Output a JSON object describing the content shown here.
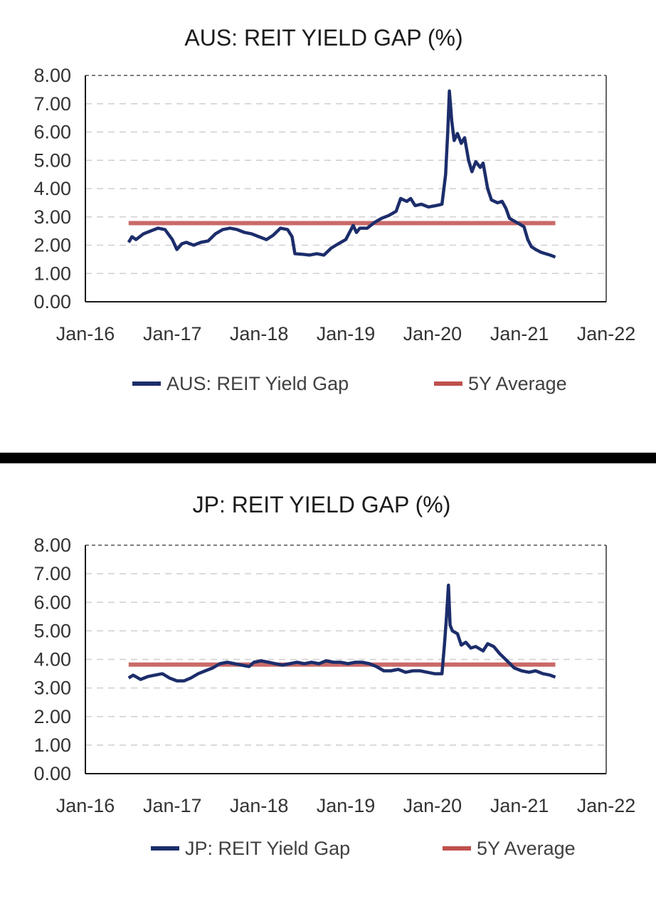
{
  "chart_data": [
    {
      "type": "line",
      "title": "AUS: REIT YIELD GAP (%)",
      "xlabel": "",
      "ylabel": "",
      "x_ticks": [
        "Jan-16",
        "Jan-17",
        "Jan-18",
        "Jan-19",
        "Jan-20",
        "Jan-21",
        "Jan-22"
      ],
      "y_ticks": [
        "0.00",
        "1.00",
        "2.00",
        "3.00",
        "4.00",
        "5.00",
        "6.00",
        "7.00",
        "8.00"
      ],
      "xlim": [
        "2016-01-01",
        "2022-01-01"
      ],
      "ylim": [
        0,
        8
      ],
      "grid": "horizontal dashed",
      "legend": "bottom",
      "series": [
        {
          "name": "AUS: REIT Yield Gap",
          "color": "#1c2d6b",
          "points": [
            [
              "2016-07-01",
              2.1
            ],
            [
              "2016-07-15",
              2.3
            ],
            [
              "2016-08-01",
              2.2
            ],
            [
              "2016-09-01",
              2.4
            ],
            [
              "2016-10-01",
              2.5
            ],
            [
              "2016-11-01",
              2.6
            ],
            [
              "2016-12-01",
              2.55
            ],
            [
              "2017-01-01",
              2.2
            ],
            [
              "2017-01-20",
              1.85
            ],
            [
              "2017-02-10",
              2.05
            ],
            [
              "2017-03-01",
              2.1
            ],
            [
              "2017-04-01",
              2.0
            ],
            [
              "2017-05-01",
              2.1
            ],
            [
              "2017-06-01",
              2.15
            ],
            [
              "2017-07-01",
              2.4
            ],
            [
              "2017-08-01",
              2.55
            ],
            [
              "2017-09-01",
              2.6
            ],
            [
              "2017-10-01",
              2.55
            ],
            [
              "2017-11-01",
              2.45
            ],
            [
              "2017-12-01",
              2.4
            ],
            [
              "2018-01-01",
              2.3
            ],
            [
              "2018-02-01",
              2.2
            ],
            [
              "2018-03-01",
              2.35
            ],
            [
              "2018-04-01",
              2.6
            ],
            [
              "2018-05-01",
              2.55
            ],
            [
              "2018-05-20",
              2.3
            ],
            [
              "2018-06-01",
              1.7
            ],
            [
              "2018-07-01",
              1.68
            ],
            [
              "2018-08-01",
              1.65
            ],
            [
              "2018-09-01",
              1.7
            ],
            [
              "2018-10-01",
              1.65
            ],
            [
              "2018-11-01",
              1.9
            ],
            [
              "2018-12-01",
              2.05
            ],
            [
              "2019-01-01",
              2.2
            ],
            [
              "2019-02-01",
              2.7
            ],
            [
              "2019-02-15",
              2.45
            ],
            [
              "2019-03-01",
              2.6
            ],
            [
              "2019-04-01",
              2.6
            ],
            [
              "2019-05-01",
              2.8
            ],
            [
              "2019-06-01",
              2.95
            ],
            [
              "2019-07-01",
              3.05
            ],
            [
              "2019-08-01",
              3.2
            ],
            [
              "2019-08-20",
              3.65
            ],
            [
              "2019-09-15",
              3.55
            ],
            [
              "2019-10-01",
              3.65
            ],
            [
              "2019-10-20",
              3.4
            ],
            [
              "2019-11-15",
              3.45
            ],
            [
              "2019-12-15",
              3.35
            ],
            [
              "2020-01-15",
              3.4
            ],
            [
              "2020-02-10",
              3.45
            ],
            [
              "2020-02-25",
              4.5
            ],
            [
              "2020-03-05",
              6.0
            ],
            [
              "2020-03-12",
              7.45
            ],
            [
              "2020-03-22",
              6.4
            ],
            [
              "2020-04-01",
              5.7
            ],
            [
              "2020-04-15",
              5.95
            ],
            [
              "2020-05-01",
              5.6
            ],
            [
              "2020-05-15",
              5.8
            ],
            [
              "2020-06-01",
              5.0
            ],
            [
              "2020-06-15",
              4.6
            ],
            [
              "2020-07-01",
              4.95
            ],
            [
              "2020-07-20",
              4.75
            ],
            [
              "2020-08-01",
              4.9
            ],
            [
              "2020-08-20",
              4.0
            ],
            [
              "2020-09-05",
              3.6
            ],
            [
              "2020-10-01",
              3.5
            ],
            [
              "2020-10-20",
              3.55
            ],
            [
              "2020-11-05",
              3.3
            ],
            [
              "2020-11-20",
              2.95
            ],
            [
              "2020-12-10",
              2.85
            ],
            [
              "2021-01-01",
              2.75
            ],
            [
              "2021-01-20",
              2.65
            ],
            [
              "2021-02-05",
              2.2
            ],
            [
              "2021-02-20",
              1.95
            ],
            [
              "2021-03-10",
              1.85
            ],
            [
              "2021-04-01",
              1.75
            ],
            [
              "2021-04-20",
              1.7
            ],
            [
              "2021-05-10",
              1.65
            ],
            [
              "2021-06-01",
              1.58
            ]
          ]
        },
        {
          "name": "5Y Average",
          "color": "#c0504d",
          "points": [
            [
              "2016-07-01",
              2.78
            ],
            [
              "2021-06-01",
              2.78
            ]
          ]
        }
      ]
    },
    {
      "type": "line",
      "title": "JP: REIT YIELD GAP (%)",
      "xlabel": "",
      "ylabel": "",
      "x_ticks": [
        "Jan-16",
        "Jan-17",
        "Jan-18",
        "Jan-19",
        "Jan-20",
        "Jan-21",
        "Jan-22"
      ],
      "y_ticks": [
        "0.00",
        "1.00",
        "2.00",
        "3.00",
        "4.00",
        "5.00",
        "6.00",
        "7.00",
        "8.00"
      ],
      "xlim": [
        "2016-01-01",
        "2022-01-01"
      ],
      "ylim": [
        0,
        8
      ],
      "grid": "horizontal dashed",
      "legend": "bottom",
      "series": [
        {
          "name": "JP: REIT Yield Gap",
          "color": "#1c2d6b",
          "points": [
            [
              "2016-07-01",
              3.35
            ],
            [
              "2016-07-20",
              3.45
            ],
            [
              "2016-08-20",
              3.3
            ],
            [
              "2016-09-20",
              3.4
            ],
            [
              "2016-10-20",
              3.45
            ],
            [
              "2016-11-20",
              3.5
            ],
            [
              "2016-12-20",
              3.35
            ],
            [
              "2017-01-20",
              3.25
            ],
            [
              "2017-02-20",
              3.25
            ],
            [
              "2017-03-20",
              3.35
            ],
            [
              "2017-04-20",
              3.5
            ],
            [
              "2017-05-20",
              3.6
            ],
            [
              "2017-06-20",
              3.7
            ],
            [
              "2017-07-20",
              3.85
            ],
            [
              "2017-08-20",
              3.9
            ],
            [
              "2017-09-20",
              3.85
            ],
            [
              "2017-10-20",
              3.8
            ],
            [
              "2017-11-20",
              3.75
            ],
            [
              "2017-12-10",
              3.9
            ],
            [
              "2018-01-10",
              3.95
            ],
            [
              "2018-02-10",
              3.9
            ],
            [
              "2018-03-10",
              3.85
            ],
            [
              "2018-04-10",
              3.8
            ],
            [
              "2018-05-10",
              3.85
            ],
            [
              "2018-06-10",
              3.9
            ],
            [
              "2018-07-10",
              3.85
            ],
            [
              "2018-08-10",
              3.9
            ],
            [
              "2018-09-10",
              3.85
            ],
            [
              "2018-10-10",
              3.95
            ],
            [
              "2018-11-10",
              3.9
            ],
            [
              "2018-12-10",
              3.9
            ],
            [
              "2019-01-10",
              3.85
            ],
            [
              "2019-02-10",
              3.9
            ],
            [
              "2019-03-10",
              3.9
            ],
            [
              "2019-04-10",
              3.85
            ],
            [
              "2019-05-10",
              3.75
            ],
            [
              "2019-06-10",
              3.6
            ],
            [
              "2019-07-10",
              3.6
            ],
            [
              "2019-08-10",
              3.65
            ],
            [
              "2019-09-10",
              3.55
            ],
            [
              "2019-10-10",
              3.6
            ],
            [
              "2019-11-10",
              3.6
            ],
            [
              "2019-12-10",
              3.55
            ],
            [
              "2020-01-10",
              3.5
            ],
            [
              "2020-02-10",
              3.5
            ],
            [
              "2020-02-20",
              4.5
            ],
            [
              "2020-02-28",
              5.4
            ],
            [
              "2020-03-08",
              6.6
            ],
            [
              "2020-03-15",
              5.2
            ],
            [
              "2020-03-25",
              5.0
            ],
            [
              "2020-04-15",
              4.9
            ],
            [
              "2020-05-01",
              4.5
            ],
            [
              "2020-05-20",
              4.6
            ],
            [
              "2020-06-10",
              4.4
            ],
            [
              "2020-07-01",
              4.45
            ],
            [
              "2020-08-01",
              4.3
            ],
            [
              "2020-08-20",
              4.55
            ],
            [
              "2020-09-15",
              4.45
            ],
            [
              "2020-10-10",
              4.2
            ],
            [
              "2020-11-10",
              3.95
            ],
            [
              "2020-12-10",
              3.7
            ],
            [
              "2021-01-10",
              3.6
            ],
            [
              "2021-02-10",
              3.55
            ],
            [
              "2021-03-10",
              3.6
            ],
            [
              "2021-04-10",
              3.5
            ],
            [
              "2021-05-10",
              3.45
            ],
            [
              "2021-06-01",
              3.38
            ]
          ]
        },
        {
          "name": "5Y Average",
          "color": "#c0504d",
          "points": [
            [
              "2016-07-01",
              3.82
            ],
            [
              "2021-06-01",
              3.82
            ]
          ]
        }
      ]
    }
  ]
}
